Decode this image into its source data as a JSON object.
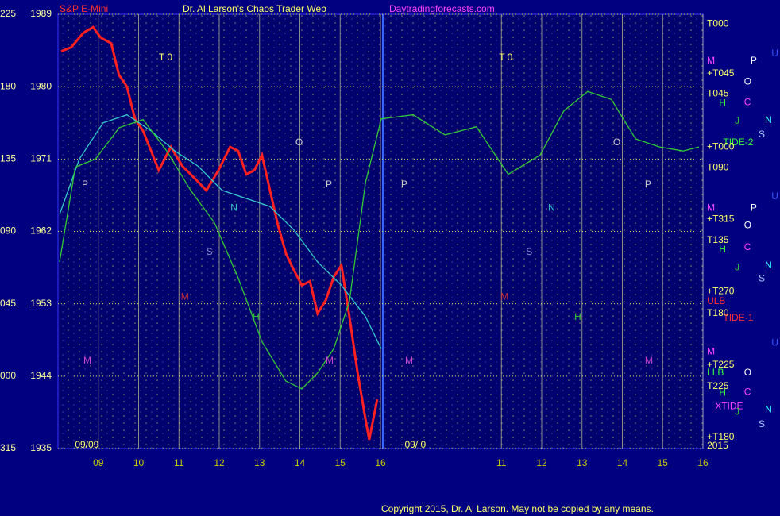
{
  "chart_data": {
    "type": "line",
    "title": "Dr. Al Larson's Chaos Trader Web",
    "instrument": "S&P E-Mini",
    "website": "Daytradingforecasts.com",
    "copyright": "Copyright 2015, Dr. Al Larson. May not be copied by any means.",
    "xlim": [
      0,
      16
    ],
    "xticks": [
      {
        "value": 1,
        "label": "09"
      },
      {
        "value": 2,
        "label": "10"
      },
      {
        "value": 3,
        "label": "11"
      },
      {
        "value": 4,
        "label": "12"
      },
      {
        "value": 5,
        "label": "13"
      },
      {
        "value": 6,
        "label": "14"
      },
      {
        "value": 7,
        "label": "15"
      },
      {
        "value": 8,
        "label": "16"
      },
      {
        "value": 11,
        "label": "11"
      },
      {
        "value": 12,
        "label": "12"
      },
      {
        "value": 13,
        "label": "13"
      },
      {
        "value": 14,
        "label": "14"
      },
      {
        "value": 15,
        "label": "15"
      },
      {
        "value": 16,
        "label": "16"
      }
    ],
    "ylim": [
      1935,
      1989
    ],
    "yticks": [
      1935,
      1944,
      1953,
      1962,
      1971,
      1980,
      1989
    ],
    "angle_labels": [
      "315",
      "000",
      "045",
      "090",
      "135",
      "180",
      "225"
    ],
    "grid": true,
    "series": [
      {
        "name": "price",
        "color": "#ff2020",
        "x": [
          0.08,
          0.33,
          0.63,
          0.87,
          1.06,
          1.32,
          1.51,
          1.71,
          1.91,
          2.11,
          2.31,
          2.5,
          2.8,
          3.09,
          3.39,
          3.68,
          3.98,
          4.27,
          4.47,
          4.67,
          4.87,
          5.06,
          5.26,
          5.46,
          5.66,
          5.85,
          6.05,
          6.25,
          6.44,
          6.64,
          6.84,
          7.03,
          7.23,
          7.43,
          7.63,
          7.72,
          7.92
        ],
        "values": [
          1984.4,
          1984.9,
          1986.7,
          1987.4,
          1986.1,
          1985.4,
          1981.5,
          1980.0,
          1976.0,
          1974.5,
          1972.0,
          1969.6,
          1972.5,
          1970.1,
          1968.6,
          1967.1,
          1969.6,
          1972.5,
          1972.0,
          1969.1,
          1969.6,
          1971.5,
          1967.1,
          1962.7,
          1959.2,
          1957.2,
          1955.3,
          1955.8,
          1951.8,
          1953.4,
          1956.3,
          1957.8,
          1951.4,
          1944.5,
          1938.6,
          1936.1,
          1941.1
        ]
      },
      {
        "name": "average",
        "color": "#33cccc",
        "x": [
          0.04,
          0.53,
          1.12,
          1.71,
          2.31,
          2.9,
          3.48,
          4.07,
          4.67,
          5.26,
          5.85,
          6.44,
          7.03,
          7.63,
          8.02
        ],
        "values": [
          1964.1,
          1971.0,
          1975.5,
          1976.5,
          1974.5,
          1972.0,
          1970.1,
          1967.1,
          1966.1,
          1965.1,
          1962.2,
          1958.2,
          1955.3,
          1951.4,
          1947.4
        ]
      },
      {
        "name": "forecast",
        "color": "#33cc33",
        "x": [
          0.04,
          0.43,
          0.93,
          1.52,
          2.11,
          2.7,
          3.29,
          3.88,
          4.47,
          5.06,
          5.65,
          6.05,
          6.44,
          6.84,
          7.23,
          7.63,
          8.02,
          8.81,
          9.6,
          10.38,
          11.17,
          11.96,
          12.55,
          13.14,
          13.73,
          14.33,
          14.92,
          15.51,
          15.9
        ],
        "values": [
          1958.2,
          1970.0,
          1971.0,
          1974.9,
          1975.9,
          1972.0,
          1967.1,
          1963.1,
          1956.2,
          1948.3,
          1943.4,
          1942.4,
          1944.4,
          1947.4,
          1953.3,
          1968.1,
          1976.0,
          1976.5,
          1974.0,
          1975.0,
          1969.1,
          1971.5,
          1977.0,
          1979.4,
          1978.4,
          1973.5,
          1972.5,
          1972.0,
          1972.5
        ]
      }
    ],
    "annotations": [
      {
        "text": "T000",
        "x": 16.1,
        "y": 1987.8,
        "color": "#ffff66"
      },
      {
        "text": "M",
        "x": 16.1,
        "y": 1983.2,
        "color": "#ff44ff"
      },
      {
        "text": "+T045",
        "x": 16.1,
        "y": 1981.6,
        "color": "#ffff66"
      },
      {
        "text": "T045",
        "x": 16.1,
        "y": 1979.1,
        "color": "#ffff66"
      },
      {
        "text": "H",
        "x": 16.4,
        "y": 1977.9,
        "color": "#33ff33"
      },
      {
        "text": "TIDE-2",
        "x": 16.5,
        "y": 1973.0,
        "color": "#33ff33"
      },
      {
        "text": "+T000",
        "x": 16.1,
        "y": 1972.5,
        "color": "#ffff66"
      },
      {
        "text": "T090",
        "x": 16.1,
        "y": 1969.9,
        "color": "#ffff66"
      },
      {
        "text": "M",
        "x": 16.1,
        "y": 1964.9,
        "color": "#ff44ff"
      },
      {
        "text": "+T315",
        "x": 16.1,
        "y": 1963.5,
        "color": "#ffff66"
      },
      {
        "text": "T135",
        "x": 16.1,
        "y": 1960.9,
        "color": "#ffff66"
      },
      {
        "text": "H",
        "x": 16.4,
        "y": 1959.7,
        "color": "#33ff33"
      },
      {
        "text": "+T270",
        "x": 16.1,
        "y": 1954.5,
        "color": "#ffff66"
      },
      {
        "text": "ULB",
        "x": 16.1,
        "y": 1953.3,
        "color": "#ff3030"
      },
      {
        "text": "T180",
        "x": 16.1,
        "y": 1951.8,
        "color": "#ffff66"
      },
      {
        "text": "TIDE-1",
        "x": 16.5,
        "y": 1951.2,
        "color": "#ff3030"
      },
      {
        "text": "M",
        "x": 16.1,
        "y": 1947.0,
        "color": "#ff44ff"
      },
      {
        "text": "+T225",
        "x": 16.1,
        "y": 1945.4,
        "color": "#ffff66"
      },
      {
        "text": "LLB",
        "x": 16.1,
        "y": 1944.4,
        "color": "#33ff33"
      },
      {
        "text": "T225",
        "x": 16.1,
        "y": 1942.7,
        "color": "#ffff66"
      },
      {
        "text": "H",
        "x": 16.4,
        "y": 1941.9,
        "color": "#33ff33"
      },
      {
        "text": "XTIDE",
        "x": 16.3,
        "y": 1940.2,
        "color": "#ff44ff"
      },
      {
        "text": "+T180",
        "x": 16.1,
        "y": 1936.4,
        "color": "#ffff66"
      },
      {
        "text": "2015",
        "x": 16.1,
        "y": 1935.3,
        "color": "#ffff66"
      },
      {
        "text": "U",
        "x": 17.7,
        "y": 1984.1,
        "color": "#3355ff"
      },
      {
        "text": "P",
        "x": 17.18,
        "y": 1983.2,
        "color": "#ffffff"
      },
      {
        "text": "O",
        "x": 17.02,
        "y": 1980.6,
        "color": "#ffffff"
      },
      {
        "text": "C",
        "x": 17.02,
        "y": 1978.0,
        "color": "#ff44ff"
      },
      {
        "text": "J",
        "x": 16.79,
        "y": 1975.7,
        "color": "#33cc33"
      },
      {
        "text": "N",
        "x": 17.54,
        "y": 1975.8,
        "color": "#33ffff"
      },
      {
        "text": "S",
        "x": 17.38,
        "y": 1974.0,
        "color": "#aaccff"
      },
      {
        "text": "U",
        "x": 17.7,
        "y": 1966.3,
        "color": "#3355ff"
      },
      {
        "text": "P",
        "x": 17.18,
        "y": 1964.9,
        "color": "#ffffff"
      },
      {
        "text": "O",
        "x": 17.02,
        "y": 1962.7,
        "color": "#ffffff"
      },
      {
        "text": "C",
        "x": 17.02,
        "y": 1960.0,
        "color": "#ff44ff"
      },
      {
        "text": "J",
        "x": 16.79,
        "y": 1957.5,
        "color": "#33cc33"
      },
      {
        "text": "N",
        "x": 17.54,
        "y": 1957.7,
        "color": "#33ffff"
      },
      {
        "text": "S",
        "x": 17.38,
        "y": 1956.1,
        "color": "#aaccff"
      },
      {
        "text": "U",
        "x": 17.7,
        "y": 1948.1,
        "color": "#3355ff"
      },
      {
        "text": "O",
        "x": 17.02,
        "y": 1944.4,
        "color": "#ffffff"
      },
      {
        "text": "C",
        "x": 17.02,
        "y": 1942.0,
        "color": "#ff44ff"
      },
      {
        "text": "J",
        "x": 16.79,
        "y": 1939.5,
        "color": "#33cc33"
      },
      {
        "text": "N",
        "x": 17.54,
        "y": 1939.8,
        "color": "#33ffff"
      },
      {
        "text": "S",
        "x": 17.38,
        "y": 1938.0,
        "color": "#aaccff"
      },
      {
        "text": "T 0",
        "x": 2.5,
        "y": 1983.6,
        "color": "#ffff66"
      },
      {
        "text": "T 0",
        "x": 10.94,
        "y": 1983.6,
        "color": "#ffff66"
      },
      {
        "text": "O",
        "x": 5.89,
        "y": 1973.0,
        "color": "#cccccc"
      },
      {
        "text": "O",
        "x": 13.77,
        "y": 1973.0,
        "color": "#cccccc"
      },
      {
        "text": "P",
        "x": 0.59,
        "y": 1967.8,
        "color": "#cccccc"
      },
      {
        "text": "P",
        "x": 6.64,
        "y": 1967.8,
        "color": "#cccccc"
      },
      {
        "text": "P",
        "x": 8.51,
        "y": 1967.8,
        "color": "#cccccc"
      },
      {
        "text": "P",
        "x": 14.56,
        "y": 1967.8,
        "color": "#cccccc"
      },
      {
        "text": "N",
        "x": 4.28,
        "y": 1964.9,
        "color": "#33cccc"
      },
      {
        "text": "N",
        "x": 12.16,
        "y": 1964.9,
        "color": "#33cccc"
      },
      {
        "text": "S",
        "x": 3.68,
        "y": 1959.4,
        "color": "#8888cc"
      },
      {
        "text": "S",
        "x": 11.61,
        "y": 1959.4,
        "color": "#8888cc"
      },
      {
        "text": "M",
        "x": 3.05,
        "y": 1953.8,
        "color": "#cc3030"
      },
      {
        "text": "M",
        "x": 10.98,
        "y": 1953.8,
        "color": "#cc3030"
      },
      {
        "text": "H",
        "x": 4.83,
        "y": 1951.3,
        "color": "#33cc33"
      },
      {
        "text": "H",
        "x": 12.81,
        "y": 1951.3,
        "color": "#33cc33"
      },
      {
        "text": "M",
        "x": 0.63,
        "y": 1945.9,
        "color": "#cc44cc"
      },
      {
        "text": "M",
        "x": 6.64,
        "y": 1945.9,
        "color": "#cc44cc"
      },
      {
        "text": "M",
        "x": 8.61,
        "y": 1945.9,
        "color": "#cc44cc"
      },
      {
        "text": "M",
        "x": 14.56,
        "y": 1945.9,
        "color": "#cc44cc"
      },
      {
        "text": "09/09",
        "x": 0.42,
        "y": 1935.4,
        "color": "#ffff66"
      },
      {
        "text": "09/ 0",
        "x": 8.6,
        "y": 1935.4,
        "color": "#ffff66"
      }
    ]
  }
}
